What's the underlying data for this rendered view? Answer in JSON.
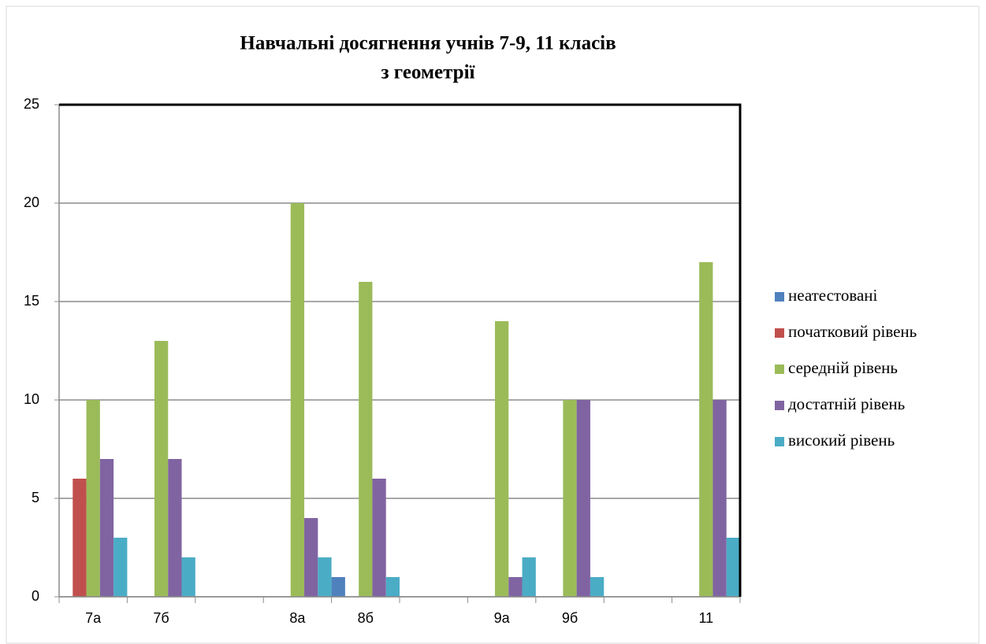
{
  "chart_data": {
    "type": "bar",
    "title": [
      "Навчальні досягнення учнів 7-9, 11 класів",
      "з геометрії"
    ],
    "categories": [
      "7а",
      "7б",
      null,
      "8а",
      "8б",
      null,
      "9а",
      "9б",
      null,
      "11"
    ],
    "series": [
      {
        "name": "неатестовані",
        "color": "#4f81bd",
        "values": [
          0,
          0,
          null,
          0,
          1,
          null,
          0,
          0,
          null,
          0
        ]
      },
      {
        "name": "початковий рівень",
        "color": "#c0504d",
        "values": [
          6,
          0,
          null,
          0,
          0,
          null,
          0,
          0,
          null,
          0
        ]
      },
      {
        "name": "середній рівень",
        "color": "#9bbb59",
        "values": [
          10,
          13,
          null,
          20,
          16,
          null,
          14,
          10,
          null,
          17
        ]
      },
      {
        "name": "достатній рівень",
        "color": "#8064a2",
        "values": [
          7,
          7,
          null,
          4,
          6,
          null,
          1,
          10,
          null,
          10
        ]
      },
      {
        "name": "високий рівень",
        "color": "#4bacc6",
        "values": [
          3,
          2,
          null,
          2,
          1,
          null,
          2,
          1,
          null,
          3
        ]
      }
    ],
    "ylim": [
      0,
      25
    ],
    "yticks": [
      0,
      5,
      10,
      15,
      20,
      25
    ],
    "grid": true,
    "legend": "right"
  }
}
